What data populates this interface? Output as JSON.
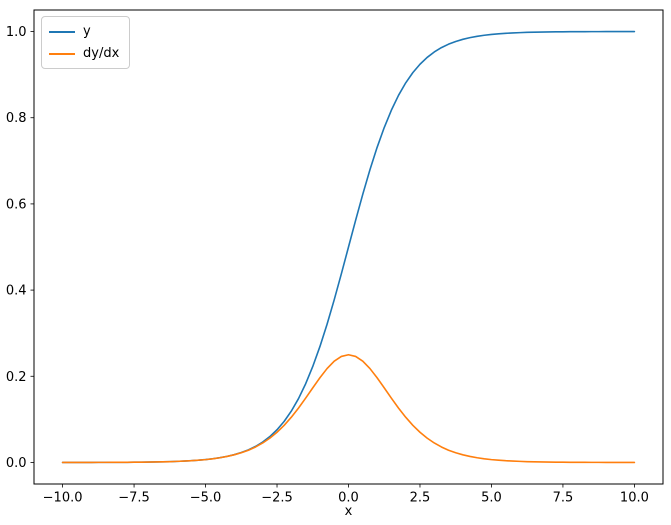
{
  "chart_data": {
    "type": "line",
    "title": "",
    "xlabel": "x",
    "ylabel": "",
    "xlim": [
      -11,
      11
    ],
    "ylim": [
      -0.05,
      1.05
    ],
    "grid": false,
    "xticks": [
      -10.0,
      -7.5,
      -5.0,
      -2.5,
      0.0,
      2.5,
      5.0,
      7.5,
      10.0
    ],
    "xtick_labels": [
      "−10.0",
      "−7.5",
      "−5.0",
      "−2.5",
      "0.0",
      "2.5",
      "5.0",
      "7.5",
      "10.0"
    ],
    "yticks": [
      0.0,
      0.2,
      0.4,
      0.6,
      0.8,
      1.0
    ],
    "ytick_labels": [
      "0.0",
      "0.2",
      "0.4",
      "0.6",
      "0.8",
      "1.0"
    ],
    "legend": {
      "location": "upper left",
      "entries": [
        "y",
        "dy/dx"
      ]
    },
    "x": [
      -10,
      -9.75,
      -9.5,
      -9.25,
      -9,
      -8.75,
      -8.5,
      -8.25,
      -8,
      -7.75,
      -7.5,
      -7.25,
      -7,
      -6.75,
      -6.5,
      -6.25,
      -6,
      -5.75,
      -5.5,
      -5.25,
      -5,
      -4.75,
      -4.5,
      -4.25,
      -4,
      -3.75,
      -3.5,
      -3.25,
      -3,
      -2.75,
      -2.5,
      -2.25,
      -2,
      -1.75,
      -1.5,
      -1.25,
      -1,
      -0.75,
      -0.5,
      -0.25,
      0,
      0.25,
      0.5,
      0.75,
      1,
      1.25,
      1.5,
      1.75,
      2,
      2.25,
      2.5,
      2.75,
      3,
      3.25,
      3.5,
      3.75,
      4,
      4.25,
      4.5,
      4.75,
      5,
      5.25,
      5.5,
      5.75,
      6,
      6.25,
      6.5,
      6.75,
      7,
      7.25,
      7.5,
      7.75,
      8,
      8.25,
      8.5,
      8.75,
      9,
      9.25,
      9.5,
      9.75,
      10
    ],
    "series": [
      {
        "name": "y",
        "color": "#1f77b4",
        "values": [
          0.0,
          0.0001,
          0.0001,
          0.0001,
          0.0001,
          0.0002,
          0.0002,
          0.0003,
          0.0003,
          0.0004,
          0.0006,
          0.0007,
          0.0009,
          0.0012,
          0.0015,
          0.0019,
          0.0025,
          0.0032,
          0.0041,
          0.0052,
          0.0067,
          0.0086,
          0.011,
          0.0141,
          0.018,
          0.023,
          0.0293,
          0.0373,
          0.0474,
          0.0601,
          0.0759,
          0.0953,
          0.1192,
          0.148,
          0.1824,
          0.2227,
          0.2689,
          0.3208,
          0.3775,
          0.4378,
          0.5,
          0.5622,
          0.6225,
          0.6792,
          0.7311,
          0.7773,
          0.8176,
          0.852,
          0.8808,
          0.9047,
          0.9241,
          0.9399,
          0.9526,
          0.9627,
          0.9707,
          0.977,
          0.982,
          0.9859,
          0.989,
          0.9914,
          0.9933,
          0.9948,
          0.9959,
          0.9968,
          0.9975,
          0.9981,
          0.9985,
          0.9988,
          0.9991,
          0.9993,
          0.9994,
          0.9996,
          0.9997,
          0.9997,
          0.9998,
          0.9998,
          0.9999,
          0.9999,
          0.9999,
          0.9999,
          1.0
        ]
      },
      {
        "name": "dy/dx",
        "color": "#ff7f0e",
        "values": [
          0.0,
          0.0001,
          0.0001,
          0.0001,
          0.0001,
          0.0002,
          0.0002,
          0.0003,
          0.0003,
          0.0004,
          0.0006,
          0.0007,
          0.0009,
          0.0012,
          0.0015,
          0.0019,
          0.0025,
          0.0032,
          0.004,
          0.0052,
          0.0066,
          0.0085,
          0.0109,
          0.0139,
          0.0177,
          0.0225,
          0.0284,
          0.0359,
          0.0452,
          0.0565,
          0.0701,
          0.0862,
          0.105,
          0.1261,
          0.1491,
          0.1731,
          0.1966,
          0.2179,
          0.235,
          0.2461,
          0.25,
          0.2461,
          0.235,
          0.2179,
          0.1966,
          0.1731,
          0.1491,
          0.1261,
          0.105,
          0.0862,
          0.0701,
          0.0565,
          0.0452,
          0.0359,
          0.0284,
          0.0225,
          0.0177,
          0.0139,
          0.0109,
          0.0085,
          0.0066,
          0.0052,
          0.004,
          0.0032,
          0.0025,
          0.0019,
          0.0015,
          0.0012,
          0.0009,
          0.0007,
          0.0006,
          0.0004,
          0.0003,
          0.0003,
          0.0002,
          0.0002,
          0.0001,
          0.0001,
          0.0001,
          0.0001,
          0.0
        ]
      }
    ]
  }
}
